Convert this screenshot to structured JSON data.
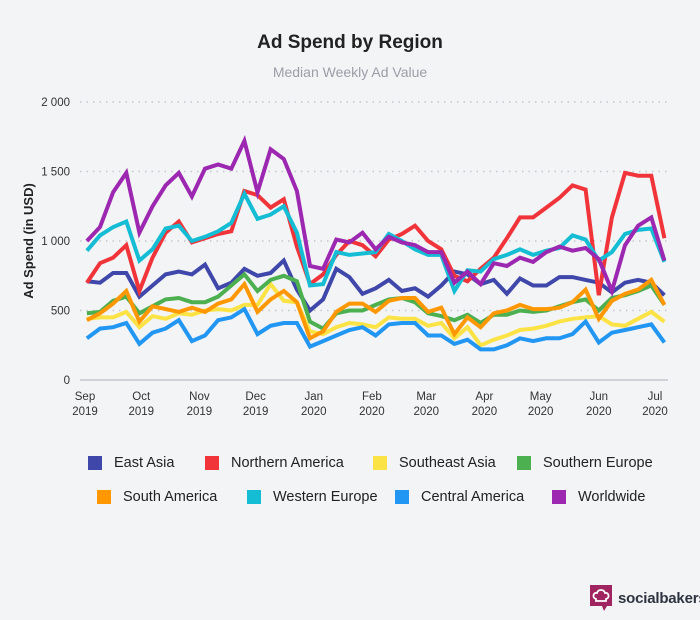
{
  "chart_data": {
    "type": "line",
    "title": "Ad Spend by Region",
    "subtitle": "Median Weekly Ad Value",
    "ylabel": "Ad Spend (in USD)",
    "xlabel": "",
    "ylim": [
      0,
      2000
    ],
    "yticks": [
      0,
      500,
      1000,
      1500,
      2000
    ],
    "ytick_labels": [
      "0",
      "500",
      "1 000",
      "1 500",
      "2 000"
    ],
    "xtick_dates": [
      "2019-09-01",
      "2019-10-01",
      "2019-11-01",
      "2019-12-01",
      "2020-01-01",
      "2020-02-01",
      "2020-03-01",
      "2020-04-01",
      "2020-05-01",
      "2020-06-01",
      "2020-07-01"
    ],
    "xtick_labels": [
      [
        "Sep",
        "2019"
      ],
      [
        "Oct",
        "2019"
      ],
      [
        "Nov",
        "2019"
      ],
      [
        "Dec",
        "2019"
      ],
      [
        "Jan",
        "2020"
      ],
      [
        "Feb",
        "2020"
      ],
      [
        "Mar",
        "2020"
      ],
      [
        "Apr",
        "2020"
      ],
      [
        "May",
        "2020"
      ],
      [
        "Jun",
        "2020"
      ],
      [
        "Jul",
        "2020"
      ]
    ],
    "grid": "horizontal dotted",
    "legend_placement": "bottom",
    "x_start": "2019-09-02",
    "x_step": "weekly",
    "series": [
      {
        "name": "East Asia",
        "color": "#3f48aa",
        "values": [
          710,
          700,
          770,
          770,
          600,
          680,
          760,
          780,
          760,
          830,
          660,
          700,
          800,
          750,
          770,
          860,
          650,
          500,
          580,
          800,
          740,
          620,
          660,
          720,
          640,
          660,
          600,
          680,
          780,
          760,
          690,
          720,
          620,
          730,
          680,
          680,
          740,
          740,
          720,
          700,
          630,
          700,
          720,
          700,
          610
        ]
      },
      {
        "name": "Northern America",
        "color": "#f0343a",
        "values": [
          700,
          840,
          880,
          970,
          640,
          880,
          1060,
          1140,
          990,
          1020,
          1050,
          1070,
          1360,
          1330,
          1240,
          1300,
          960,
          690,
          760,
          900,
          1000,
          970,
          890,
          1010,
          1050,
          1110,
          1000,
          940,
          750,
          710,
          800,
          880,
          1020,
          1170,
          1170,
          1240,
          1310,
          1400,
          1370,
          610,
          1170,
          1490,
          1470,
          1470,
          1020
        ]
      },
      {
        "name": "Southeast Asia",
        "color": "#fbe345",
        "values": [
          440,
          450,
          450,
          490,
          380,
          460,
          440,
          480,
          470,
          500,
          510,
          500,
          540,
          540,
          690,
          570,
          560,
          350,
          330,
          380,
          410,
          400,
          380,
          450,
          440,
          440,
          390,
          410,
          300,
          380,
          250,
          290,
          320,
          360,
          370,
          390,
          420,
          440,
          450,
          460,
          400,
          390,
          440,
          490,
          420
        ]
      },
      {
        "name": "Southern Europe",
        "color": "#4caf50",
        "values": [
          480,
          490,
          570,
          600,
          480,
          530,
          580,
          590,
          560,
          560,
          600,
          680,
          760,
          640,
          720,
          750,
          710,
          420,
          370,
          480,
          500,
          500,
          540,
          580,
          590,
          560,
          480,
          460,
          430,
          470,
          410,
          470,
          470,
          500,
          490,
          500,
          530,
          560,
          580,
          500,
          590,
          610,
          640,
          680,
          540
        ]
      },
      {
        "name": "South America",
        "color": "#ff9800",
        "values": [
          430,
          480,
          550,
          640,
          420,
          530,
          510,
          490,
          520,
          490,
          550,
          580,
          690,
          490,
          580,
          640,
          560,
          300,
          350,
          490,
          550,
          550,
          490,
          570,
          590,
          590,
          490,
          520,
          330,
          450,
          380,
          480,
          500,
          540,
          510,
          510,
          520,
          560,
          650,
          440,
          570,
          620,
          650,
          720,
          540
        ]
      },
      {
        "name": "Western Europe",
        "color": "#14bcd4",
        "values": [
          930,
          1040,
          1100,
          1140,
          860,
          940,
          1090,
          1110,
          1000,
          1030,
          1070,
          1130,
          1340,
          1160,
          1190,
          1250,
          1060,
          680,
          690,
          920,
          900,
          910,
          920,
          1050,
          1000,
          940,
          900,
          900,
          640,
          790,
          780,
          870,
          900,
          940,
          900,
          930,
          950,
          1040,
          1010,
          860,
          920,
          1050,
          1080,
          1090,
          850
        ]
      },
      {
        "name": "Central America",
        "color": "#2196f3",
        "values": [
          300,
          370,
          380,
          410,
          260,
          340,
          370,
          430,
          280,
          320,
          430,
          450,
          510,
          330,
          390,
          410,
          410,
          240,
          280,
          320,
          360,
          380,
          320,
          400,
          410,
          410,
          320,
          320,
          260,
          290,
          220,
          220,
          250,
          300,
          280,
          300,
          300,
          330,
          420,
          270,
          340,
          360,
          380,
          400,
          270
        ]
      },
      {
        "name": "Worldwide",
        "color": "#9c27b0",
        "values": [
          1000,
          1100,
          1350,
          1490,
          1060,
          1250,
          1400,
          1490,
          1320,
          1520,
          1550,
          1520,
          1720,
          1350,
          1660,
          1590,
          1360,
          820,
          800,
          1010,
          990,
          1060,
          940,
          1030,
          990,
          970,
          920,
          920,
          700,
          780,
          690,
          840,
          820,
          880,
          850,
          920,
          960,
          930,
          950,
          870,
          640,
          970,
          1110,
          1170,
          860
        ]
      }
    ]
  },
  "branding": {
    "logo_text": "socialbakers",
    "logo_color": "#a0245f",
    "logo_icon": "chef-hat-speech-bubble-icon"
  }
}
